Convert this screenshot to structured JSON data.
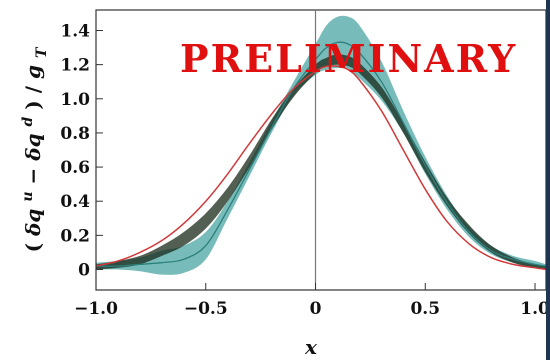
{
  "chart_data": {
    "type": "line",
    "watermark": "PRELIMINARY",
    "xlabel": "x",
    "ylabel_parts": {
      "open": "(",
      "dq": "δq",
      "u": "u",
      "minus": " − ",
      "dq2": "δq",
      "d": "d",
      "close": ")",
      "slash": " / ",
      "g": "g",
      "T": "T"
    },
    "xlim": [
      -1.0,
      1.05
    ],
    "ylim": [
      -0.12,
      1.52
    ],
    "x_ticks": [
      {
        "value": -1.0,
        "label": "−1.0"
      },
      {
        "value": -0.5,
        "label": "−0.5"
      },
      {
        "value": 0.0,
        "label": "0"
      },
      {
        "value": 0.5,
        "label": "0.5"
      },
      {
        "value": 1.0,
        "label": "1.0"
      }
    ],
    "y_ticks": [
      {
        "value": 0.0,
        "label": "0"
      },
      {
        "value": 0.2,
        "label": "0.2"
      },
      {
        "value": 0.4,
        "label": "0.4"
      },
      {
        "value": 0.6,
        "label": "0.6"
      },
      {
        "value": 0.8,
        "label": "0.8"
      },
      {
        "value": 1.0,
        "label": "1.0"
      },
      {
        "value": 1.2,
        "label": "1.2"
      },
      {
        "value": 1.4,
        "label": "1.4"
      }
    ],
    "series": [
      {
        "color": "#5fb0ae",
        "band_upper": [
          [
            -1.0,
            0.04
          ],
          [
            -0.9,
            0.05
          ],
          [
            -0.8,
            0.07
          ],
          [
            -0.7,
            0.11
          ],
          [
            -0.6,
            0.14
          ],
          [
            -0.5,
            0.22
          ],
          [
            -0.4,
            0.4
          ],
          [
            -0.3,
            0.63
          ],
          [
            -0.2,
            0.87
          ],
          [
            -0.1,
            1.1
          ],
          [
            0.0,
            1.32
          ],
          [
            0.05,
            1.43
          ],
          [
            0.1,
            1.48
          ],
          [
            0.15,
            1.48
          ],
          [
            0.2,
            1.43
          ],
          [
            0.3,
            1.22
          ],
          [
            0.4,
            0.93
          ],
          [
            0.5,
            0.66
          ],
          [
            0.6,
            0.43
          ],
          [
            0.7,
            0.25
          ],
          [
            0.8,
            0.14
          ],
          [
            0.9,
            0.08
          ],
          [
            1.0,
            0.05
          ],
          [
            1.05,
            0.03
          ]
        ],
        "band_lower": [
          [
            -1.0,
            0.0
          ],
          [
            -0.9,
            0.0
          ],
          [
            -0.8,
            -0.01
          ],
          [
            -0.7,
            -0.03
          ],
          [
            -0.6,
            -0.02
          ],
          [
            -0.5,
            0.06
          ],
          [
            -0.4,
            0.3
          ],
          [
            -0.3,
            0.55
          ],
          [
            -0.2,
            0.8
          ],
          [
            -0.1,
            1.02
          ],
          [
            0.0,
            1.14
          ],
          [
            0.05,
            1.17
          ],
          [
            0.1,
            1.18
          ],
          [
            0.15,
            1.17
          ],
          [
            0.2,
            1.12
          ],
          [
            0.3,
            0.99
          ],
          [
            0.4,
            0.8
          ],
          [
            0.5,
            0.56
          ],
          [
            0.6,
            0.35
          ],
          [
            0.7,
            0.19
          ],
          [
            0.8,
            0.09
          ],
          [
            0.9,
            0.04
          ],
          [
            1.0,
            0.01
          ],
          [
            1.05,
            0.0
          ]
        ],
        "central": [
          [
            -1.0,
            0.02
          ],
          [
            -0.9,
            0.02
          ],
          [
            -0.8,
            0.03
          ],
          [
            -0.7,
            0.04
          ],
          [
            -0.6,
            0.06
          ],
          [
            -0.5,
            0.14
          ],
          [
            -0.4,
            0.35
          ],
          [
            -0.3,
            0.59
          ],
          [
            -0.2,
            0.83
          ],
          [
            -0.1,
            1.06
          ],
          [
            0.0,
            1.23
          ],
          [
            0.05,
            1.3
          ],
          [
            0.1,
            1.33
          ],
          [
            0.15,
            1.32
          ],
          [
            0.2,
            1.27
          ],
          [
            0.3,
            1.1
          ],
          [
            0.4,
            0.86
          ],
          [
            0.5,
            0.61
          ],
          [
            0.6,
            0.39
          ],
          [
            0.7,
            0.22
          ],
          [
            0.8,
            0.11
          ],
          [
            0.9,
            0.06
          ],
          [
            1.0,
            0.03
          ],
          [
            1.05,
            0.02
          ]
        ]
      },
      {
        "color": "#1a2a1a",
        "band_upper": [
          [
            -1.0,
            0.03
          ],
          [
            -0.9,
            0.05
          ],
          [
            -0.8,
            0.08
          ],
          [
            -0.7,
            0.14
          ],
          [
            -0.6,
            0.22
          ],
          [
            -0.5,
            0.33
          ],
          [
            -0.4,
            0.48
          ],
          [
            -0.3,
            0.67
          ],
          [
            -0.2,
            0.88
          ],
          [
            -0.1,
            1.06
          ],
          [
            0.0,
            1.2
          ],
          [
            0.05,
            1.24
          ],
          [
            0.1,
            1.26
          ],
          [
            0.15,
            1.25
          ],
          [
            0.2,
            1.21
          ],
          [
            0.3,
            1.07
          ],
          [
            0.4,
            0.86
          ],
          [
            0.5,
            0.63
          ],
          [
            0.6,
            0.42
          ],
          [
            0.7,
            0.26
          ],
          [
            0.8,
            0.14
          ],
          [
            0.9,
            0.07
          ],
          [
            1.0,
            0.03
          ],
          [
            1.05,
            0.02
          ]
        ],
        "band_lower": [
          [
            -1.0,
            0.0
          ],
          [
            -0.9,
            0.01
          ],
          [
            -0.8,
            0.03
          ],
          [
            -0.7,
            0.08
          ],
          [
            -0.6,
            0.14
          ],
          [
            -0.5,
            0.24
          ],
          [
            -0.4,
            0.4
          ],
          [
            -0.3,
            0.6
          ],
          [
            -0.2,
            0.82
          ],
          [
            -0.1,
            1.01
          ],
          [
            0.0,
            1.15
          ],
          [
            0.05,
            1.19
          ],
          [
            0.1,
            1.2
          ],
          [
            0.15,
            1.19
          ],
          [
            0.2,
            1.15
          ],
          [
            0.3,
            1.01
          ],
          [
            0.4,
            0.8
          ],
          [
            0.5,
            0.57
          ],
          [
            0.6,
            0.37
          ],
          [
            0.7,
            0.21
          ],
          [
            0.8,
            0.1
          ],
          [
            0.9,
            0.04
          ],
          [
            1.0,
            0.01
          ],
          [
            1.05,
            0.0
          ]
        ]
      },
      {
        "color": "#d03a3a",
        "central": [
          [
            -1.0,
            0.02
          ],
          [
            -0.9,
            0.05
          ],
          [
            -0.8,
            0.1
          ],
          [
            -0.7,
            0.17
          ],
          [
            -0.6,
            0.27
          ],
          [
            -0.5,
            0.4
          ],
          [
            -0.4,
            0.56
          ],
          [
            -0.3,
            0.74
          ],
          [
            -0.2,
            0.91
          ],
          [
            -0.1,
            1.06
          ],
          [
            0.0,
            1.16
          ],
          [
            0.05,
            1.19
          ],
          [
            0.1,
            1.19
          ],
          [
            0.15,
            1.17
          ],
          [
            0.2,
            1.11
          ],
          [
            0.3,
            0.93
          ],
          [
            0.4,
            0.7
          ],
          [
            0.5,
            0.47
          ],
          [
            0.6,
            0.28
          ],
          [
            0.7,
            0.15
          ],
          [
            0.8,
            0.07
          ],
          [
            0.9,
            0.03
          ],
          [
            1.0,
            0.01
          ],
          [
            1.05,
            0.0
          ]
        ]
      }
    ]
  }
}
